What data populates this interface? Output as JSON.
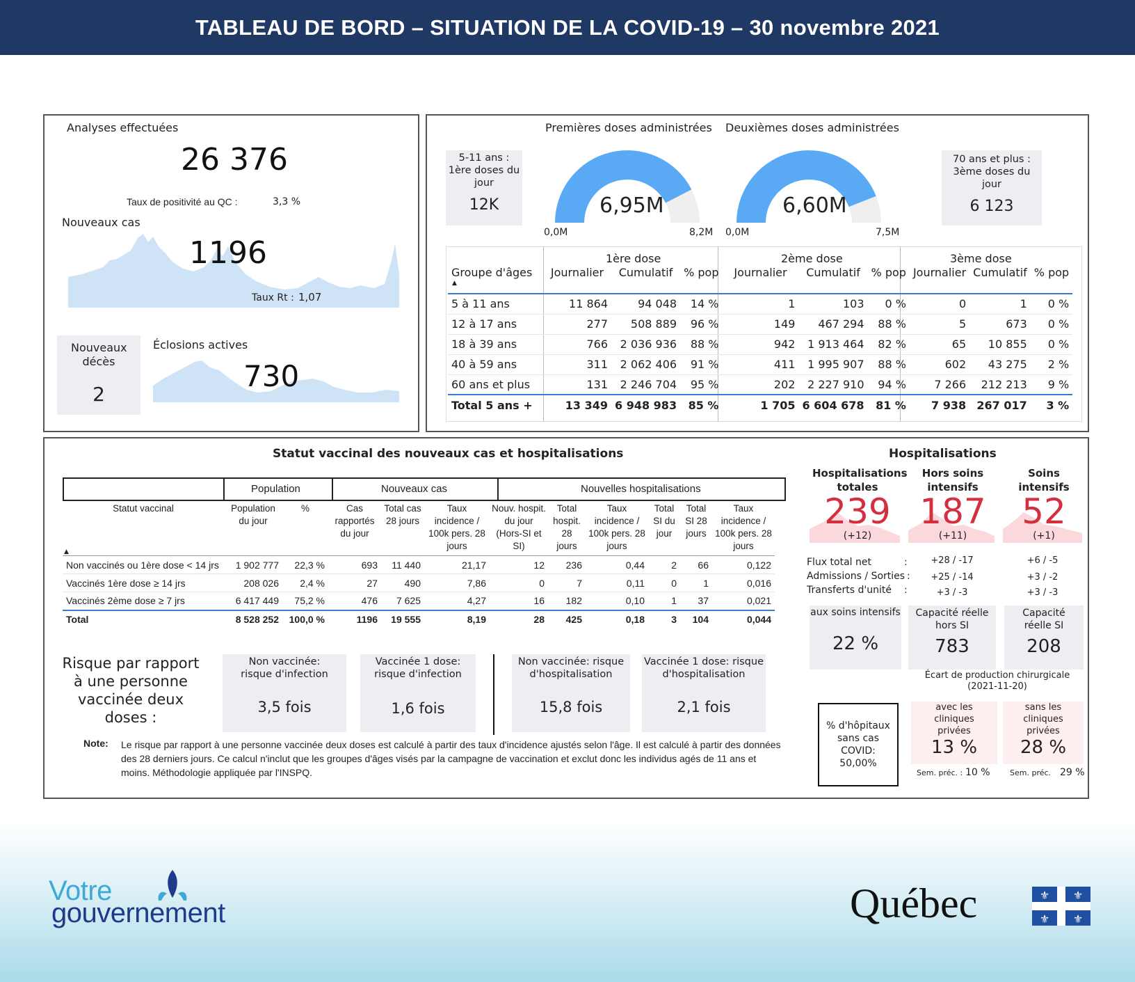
{
  "header": {
    "title": "TABLEAU DE BORD – SITUATION DE LA COVID-19 – 30 novembre 2021"
  },
  "analyses": {
    "title": "Analyses effectuées",
    "value": "26 376",
    "positivity_label": "Taux de positivité au QC :",
    "positivity_value": "3,3 %"
  },
  "nouveaux_cas": {
    "title": "Nouveaux cas",
    "value": "1196",
    "rt_label": "Taux Rt :",
    "rt_value": "1,07"
  },
  "deces": {
    "title": "Nouveaux décès",
    "value": "2"
  },
  "eclosions": {
    "title": "Éclosions actives",
    "value": "730"
  },
  "vaccination": {
    "first_title": "Premières doses administrées",
    "second_title": "Deuxièmes doses administrées",
    "kid_box": {
      "label": "5-11 ans : 1ère doses du jour",
      "value": "12K"
    },
    "senior_box": {
      "label": "70 ans et plus : 3ème doses du jour",
      "value": "6 123"
    },
    "gauge1": {
      "value_label": "6,95M",
      "min": "0,0M",
      "max": "8,2M",
      "fraction": 0.848
    },
    "gauge2": {
      "value_label": "6,60M",
      "min": "0,0M",
      "max": "7,5M",
      "fraction": 0.88
    },
    "groups": {
      "d1": "1ère dose",
      "d2": "2ème dose",
      "d3": "3ème dose"
    },
    "columns": [
      "Groupe d'âges",
      "Journalier",
      "Cumulatif",
      "% pop",
      "Journalier",
      "Cumulatif",
      "% pop",
      "Journalier",
      "Cumulatif",
      "% pop"
    ],
    "rows": [
      [
        "5 à 11 ans",
        "11 864",
        "94 048",
        "14 %",
        "1",
        "103",
        "0 %",
        "0",
        "1",
        "0 %"
      ],
      [
        "12 à 17 ans",
        "277",
        "508 889",
        "96 %",
        "149",
        "467 294",
        "88 %",
        "5",
        "673",
        "0 %"
      ],
      [
        "18 à 39 ans",
        "766",
        "2 036 936",
        "88 %",
        "942",
        "1 913 464",
        "82 %",
        "65",
        "10 855",
        "0 %"
      ],
      [
        "40 à 59 ans",
        "311",
        "2 062 406",
        "91 %",
        "411",
        "1 995 907",
        "88 %",
        "602",
        "43 275",
        "2 %"
      ],
      [
        "60 ans et plus",
        "131",
        "2 246 704",
        "95 %",
        "202",
        "2 227 910",
        "94 %",
        "7 266",
        "212 213",
        "9 %"
      ]
    ],
    "total": [
      "Total 5 ans +",
      "13 349",
      "6 948 983",
      "85 %",
      "1 705",
      "6 604 678",
      "81 %",
      "7 938",
      "267 017",
      "3 %"
    ]
  },
  "statut": {
    "title": "Statut vaccinal des nouveaux cas et hospitalisations",
    "group_headers": [
      "Population",
      "Nouveaux cas",
      "Nouvelles hospitalisations"
    ],
    "columns": [
      "Statut vaccinal",
      "Population du jour",
      "%",
      "Cas rapportés du jour",
      "Total cas 28 jours",
      "Taux incidence / 100k pers. 28 jours",
      "Nouv. hospit. du jour (Hors-SI et SI)",
      "Total hospit. 28 jours",
      "Taux incidence / 100k pers. 28 jours",
      "Total SI du jour",
      "Total SI 28 jours",
      "Taux incidence / 100k pers. 28 jours"
    ],
    "rows": [
      [
        "Non vaccinés ou 1ère dose < 14 jrs",
        "1 902 777",
        "22,3 %",
        "693",
        "11 440",
        "21,17",
        "12",
        "236",
        "0,44",
        "2",
        "66",
        "0,122"
      ],
      [
        "Vaccinés 1ère dose ≥ 14 jrs",
        "208 026",
        "2,4 %",
        "27",
        "490",
        "7,86",
        "0",
        "7",
        "0,11",
        "0",
        "1",
        "0,016"
      ],
      [
        "Vaccinés 2ème dose ≥ 7 jrs",
        "6 417 449",
        "75,2 %",
        "476",
        "7 625",
        "4,27",
        "16",
        "182",
        "0,10",
        "1",
        "37",
        "0,021"
      ]
    ],
    "total": [
      "Total",
      "8 528 252",
      "100,0 %",
      "1196",
      "19 555",
      "8,19",
      "28",
      "425",
      "0,18",
      "3",
      "104",
      "0,044"
    ]
  },
  "risque": {
    "label": "Risque par rapport à une personne vaccinée deux doses :",
    "boxes": [
      {
        "title": "Non vaccinée: risque d'infection",
        "value": "3,5 fois"
      },
      {
        "title": "Vaccinée 1 dose: risque d'infection",
        "value": "1,6 fois"
      },
      {
        "title": "Non vaccinée: risque d'hospitalisation",
        "value": "15,8 fois"
      },
      {
        "title": "Vaccinée 1 dose: risque d'hospitalisation",
        "value": "2,1 fois"
      }
    ],
    "note_label": "Note:",
    "note_text": "Le risque par rapport à une personne vaccinée deux doses est calculé à partir des taux d'incidence ajustés selon l'âge. Il est calculé à partir des données des 28 derniers jours. Ce calcul n'inclut que les groupes d'âges visés par la campagne de vaccination et exclut donc les individus agés de 11 ans et moins. Méthodologie appliquée par l'INSPQ."
  },
  "hospitalisations": {
    "title": "Hospitalisations",
    "cols": [
      {
        "title": "Hospitalisations totales",
        "value": "239",
        "delta": "(+12)",
        "flux": "+28 / -17",
        "adm": "+25 / -14",
        "transf": "+3 / -3"
      },
      {
        "title": "Hors soins intensifs",
        "value": "187",
        "delta": "(+11)"
      },
      {
        "title": "Soins intensifs",
        "value": "52",
        "delta": "(+1)",
        "flux": "+6 / -5",
        "adm": "+3 / -2",
        "transf": "+3 / -3"
      }
    ],
    "flux_label": "Flux total net",
    "adm_label": "Admissions / Sorties",
    "transf_label": "Transferts d'unité",
    "colon": ":",
    "si_box": {
      "label": "aux soins intensifs",
      "value": "22 %"
    },
    "cap_hors": {
      "label": "Capacité réelle hors SI",
      "value": "783"
    },
    "cap_si": {
      "label": "Capacité réelle SI",
      "value": "208"
    },
    "ecart_label": "Écart de production chirurgicale (2021-11-20)",
    "pct_hopitaux": "% d'hôpitaux sans cas COVID: 50,00%",
    "avec": {
      "label": "avec les cliniques privées",
      "value": "13 %",
      "prev_label": "Sem. préc. :",
      "prev_value": "10 %"
    },
    "sans": {
      "label": "sans les cliniques privées",
      "value": "28 %",
      "prev_label": "Sem. préc.",
      "prev_value": "29 %"
    }
  },
  "logos": {
    "votre": "Votre",
    "gouvernement": "gouvernement",
    "quebec": "Québec"
  }
}
